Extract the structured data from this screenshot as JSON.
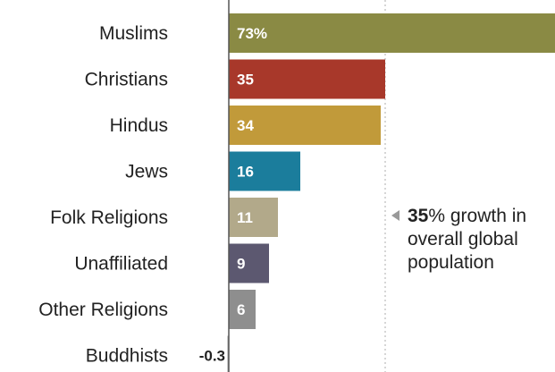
{
  "chart_data": {
    "type": "bar",
    "orientation": "horizontal",
    "categories": [
      "Muslims",
      "Christians",
      "Hindus",
      "Jews",
      "Folk Religions",
      "Unaffiliated",
      "Other Religions",
      "Buddhists"
    ],
    "values": [
      73,
      35,
      34,
      16,
      11,
      9,
      6,
      -0.3
    ],
    "value_labels": [
      "73%",
      "35",
      "34",
      "16",
      "11",
      "9",
      "6",
      "-0.3"
    ],
    "colors": [
      "#8a8a44",
      "#a8382a",
      "#c19a3a",
      "#1b7d9c",
      "#b2a98a",
      "#5c5870",
      "#8e8e8e",
      "#9a9a9a"
    ],
    "reference_line": {
      "value": 35
    },
    "annotation": {
      "bold": "35",
      "rest": "% growth in overall global population"
    },
    "grid": false
  }
}
